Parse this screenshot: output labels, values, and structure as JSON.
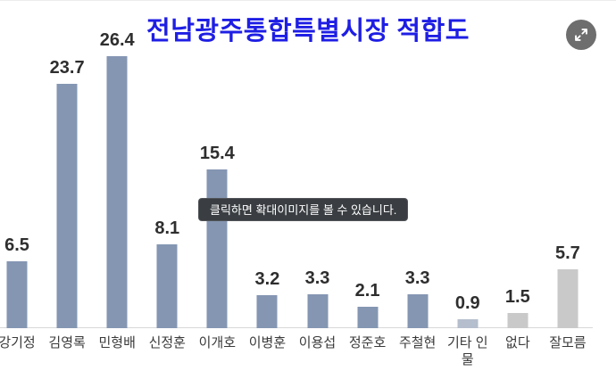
{
  "chart_data": {
    "type": "bar",
    "title": "전남광주통합특별시장 적합도",
    "categories": [
      "강기정",
      "김영록",
      "민형배",
      "신정훈",
      "이개호",
      "이병훈",
      "이용섭",
      "정준호",
      "주철현",
      "기타 인물",
      "없다",
      "잘모름"
    ],
    "values": [
      6.5,
      23.7,
      26.4,
      8.1,
      15.4,
      3.2,
      3.3,
      2.1,
      3.3,
      0.9,
      1.5,
      5.7
    ],
    "bar_colors": [
      "#8496B2",
      "#8496B2",
      "#8496B2",
      "#8496B2",
      "#8496B2",
      "#8496B2",
      "#8496B2",
      "#8496B2",
      "#8496B2",
      "#B4BECD",
      "#C9C9C9",
      "#C9C9C9"
    ],
    "value_labels_shown": true,
    "xlabel": "",
    "ylabel": "",
    "ylim": [
      0,
      28
    ],
    "grid": false,
    "legend": "none",
    "colors": {
      "title": "#1E1EE4",
      "bar_primary": "#8496B2",
      "bar_other": "#B4BECD",
      "bar_neutral": "#C9C9C9",
      "value_label": "#2E2E2E",
      "category_label": "#3A3A3A",
      "axis_line": "#D8D8D8",
      "tooltip_bg": "#3A3E42",
      "expand_button_bg": "#6E6E6E"
    }
  },
  "overlay": {
    "tooltip_text": "클릭하면 확대이미지를 볼 수 있습니다.",
    "expand_button_icon": "expand-arrows-icon"
  }
}
